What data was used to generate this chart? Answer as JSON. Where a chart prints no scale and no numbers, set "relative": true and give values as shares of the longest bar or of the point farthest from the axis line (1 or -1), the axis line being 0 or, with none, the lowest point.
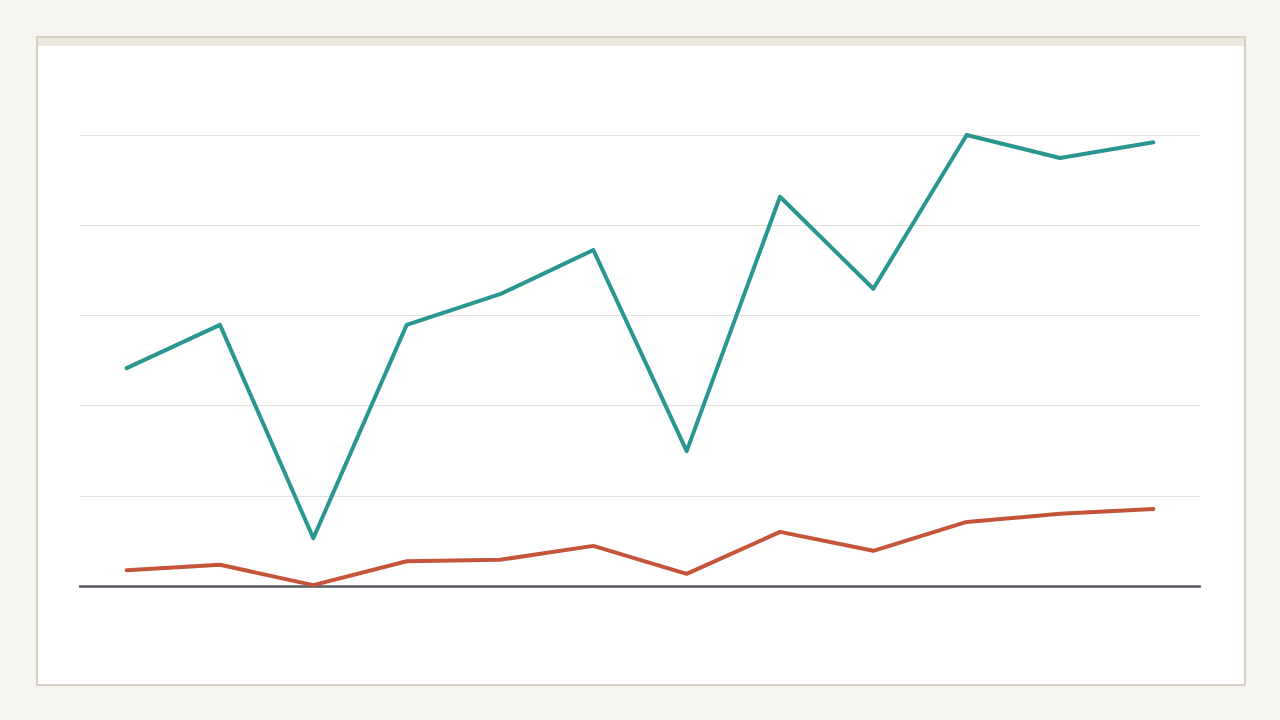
{
  "chart_data": {
    "type": "line",
    "relative": true,
    "categories": [
      null,
      null,
      null,
      null,
      null,
      null,
      null,
      null,
      null,
      null,
      null,
      null
    ],
    "series": [
      {
        "color": "#2a9690",
        "values": [
          0.483,
          0.579,
          0.106,
          0.579,
          0.647,
          0.745,
          0.299,
          0.863,
          0.659,
          1,
          0.949,
          0.984
        ]
      },
      {
        "color": "#c4553a",
        "values": [
          0.035,
          0.047,
          0.002,
          0.055,
          0.058,
          0.089,
          0.027,
          0.12,
          0.078,
          0.142,
          0.16,
          0.171
        ]
      }
    ],
    "grid": "y",
    "marker": "none",
    "line_style": "solid"
  }
}
